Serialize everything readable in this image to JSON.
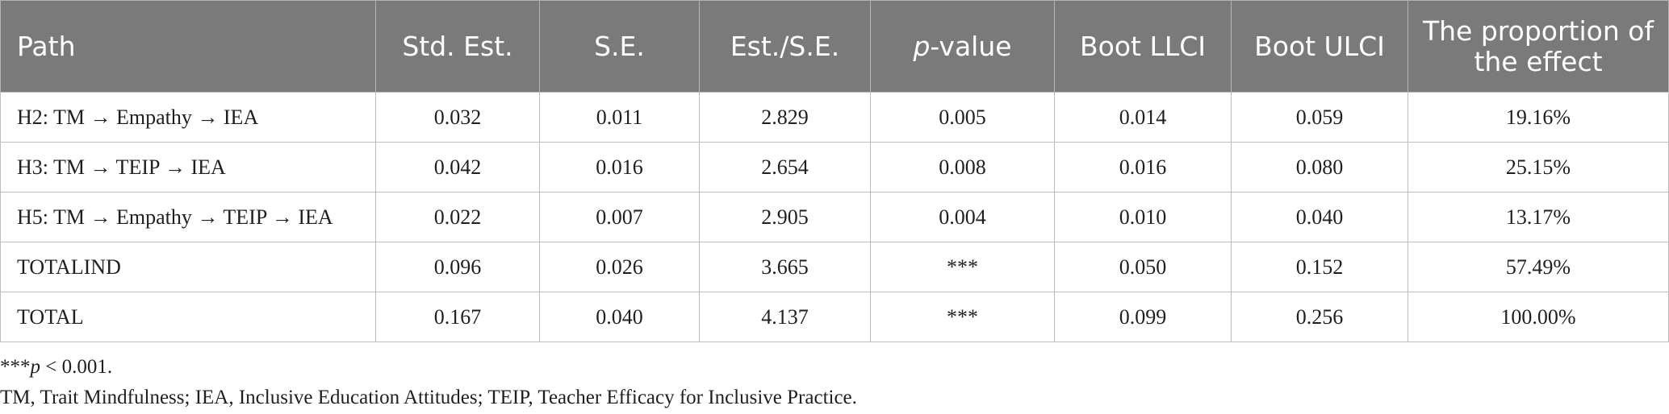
{
  "table": {
    "headers": {
      "path": "Path",
      "std_est": "Std. Est.",
      "se": "S.E.",
      "est_se": "Est./S.E.",
      "p_value_italic": "p",
      "p_value_rest": "-value",
      "boot_llci": "Boot LLCI",
      "boot_ulci": "Boot ULCI",
      "proportion": "The proportion of the effect"
    },
    "rows": [
      {
        "path": "H2: TM → Empathy → IEA",
        "std_est": "0.032",
        "se": "0.011",
        "est_se": "2.829",
        "p_value": "0.005",
        "boot_llci": "0.014",
        "boot_ulci": "0.059",
        "proportion": "19.16%"
      },
      {
        "path": "H3: TM → TEIP → IEA",
        "std_est": "0.042",
        "se": "0.016",
        "est_se": "2.654",
        "p_value": "0.008",
        "boot_llci": "0.016",
        "boot_ulci": "0.080",
        "proportion": "25.15%"
      },
      {
        "path": "H5: TM → Empathy → TEIP → IEA",
        "std_est": "0.022",
        "se": "0.007",
        "est_se": "2.905",
        "p_value": "0.004",
        "boot_llci": "0.010",
        "boot_ulci": "0.040",
        "proportion": "13.17%"
      },
      {
        "path": "TOTALIND",
        "std_est": "0.096",
        "se": "0.026",
        "est_se": "3.665",
        "p_value": "***",
        "boot_llci": "0.050",
        "boot_ulci": "0.152",
        "proportion": "57.49%"
      },
      {
        "path": "TOTAL",
        "std_est": "0.167",
        "se": "0.040",
        "est_se": "4.137",
        "p_value": "***",
        "boot_llci": "0.099",
        "boot_ulci": "0.256",
        "proportion": "100.00%"
      }
    ]
  },
  "notes": {
    "significance_stars": "***",
    "significance_p": "p",
    "significance_rest": " < 0.001.",
    "abbreviations": "TM, Trait Mindfulness; IEA, Inclusive Education Attitudes; TEIP, Teacher Efficacy for Inclusive Practice."
  },
  "colors": {
    "header_bg": "#7a7a7a",
    "header_text": "#ffffff",
    "body_text": "#1f1f1f",
    "grid_line": "#bdbdbd"
  }
}
